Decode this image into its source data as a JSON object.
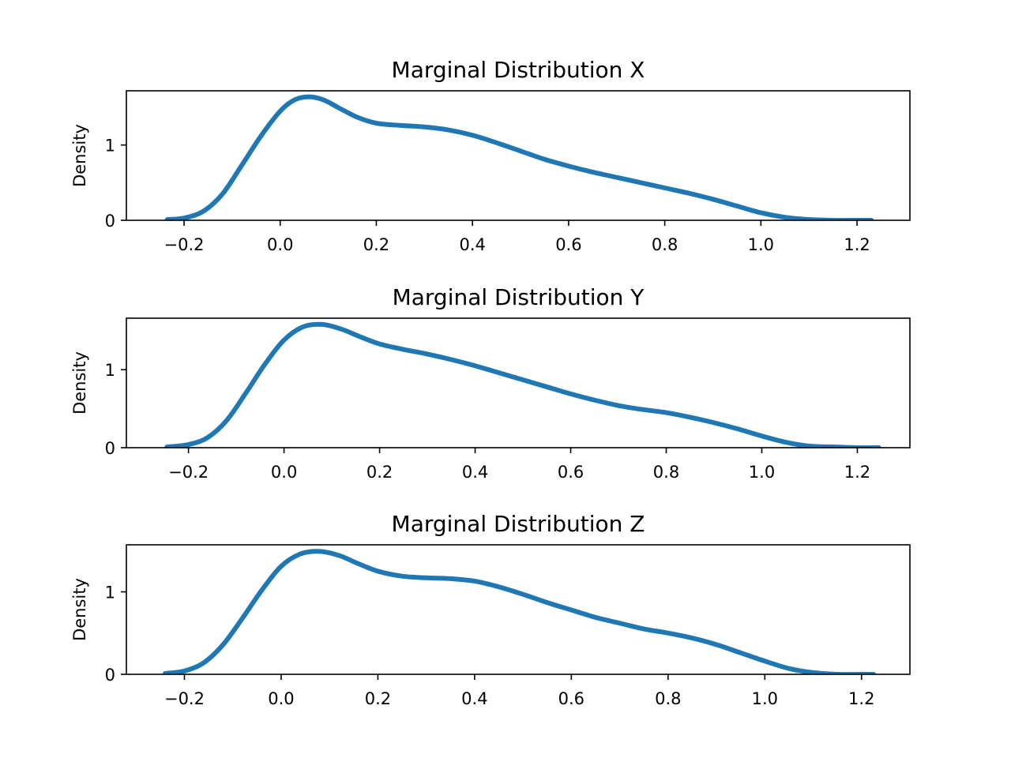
{
  "chart_data": [
    {
      "type": "line",
      "title": "Marginal Distribution X",
      "xlabel": "",
      "ylabel": "Density",
      "xlim": [
        -0.32,
        1.31
      ],
      "ylim": [
        0,
        1.72
      ],
      "xticks": [
        -0.2,
        0.0,
        0.2,
        0.4,
        0.6,
        0.8,
        1.0,
        1.2
      ],
      "xtick_labels": [
        "−0.2",
        "0.0",
        "0.2",
        "0.4",
        "0.6",
        "0.8",
        "1.0",
        "1.2"
      ],
      "yticks": [
        0,
        1
      ],
      "ytick_labels": [
        "0",
        "1"
      ],
      "grid": false,
      "color": "#1f77b4",
      "series": [
        {
          "x": [
            -0.235,
            -0.2,
            -0.16,
            -0.12,
            -0.08,
            -0.04,
            0.0,
            0.03,
            0.06,
            0.09,
            0.12,
            0.16,
            0.2,
            0.25,
            0.3,
            0.35,
            0.4,
            0.45,
            0.5,
            0.55,
            0.6,
            0.65,
            0.7,
            0.75,
            0.8,
            0.85,
            0.9,
            0.95,
            1.0,
            1.05,
            1.1,
            1.15,
            1.2,
            1.23
          ],
          "y": [
            0.01,
            0.03,
            0.12,
            0.35,
            0.73,
            1.12,
            1.45,
            1.6,
            1.64,
            1.6,
            1.5,
            1.37,
            1.29,
            1.26,
            1.24,
            1.2,
            1.13,
            1.03,
            0.92,
            0.81,
            0.72,
            0.64,
            0.57,
            0.5,
            0.43,
            0.36,
            0.28,
            0.19,
            0.1,
            0.04,
            0.01,
            0.0,
            0.0,
            0.0
          ]
        }
      ]
    },
    {
      "type": "line",
      "title": "Marginal Distribution Y",
      "xlabel": "",
      "ylabel": "Density",
      "xlim": [
        -0.33,
        1.31
      ],
      "ylim": [
        0,
        1.66
      ],
      "xticks": [
        -0.2,
        0.0,
        0.2,
        0.4,
        0.6,
        0.8,
        1.0,
        1.2
      ],
      "xtick_labels": [
        "−0.2",
        "0.0",
        "0.2",
        "0.4",
        "0.6",
        "0.8",
        "1.0",
        "1.2"
      ],
      "yticks": [
        0,
        1
      ],
      "ytick_labels": [
        "0",
        "1"
      ],
      "grid": false,
      "color": "#1f77b4",
      "series": [
        {
          "x": [
            -0.245,
            -0.2,
            -0.16,
            -0.12,
            -0.08,
            -0.04,
            0.0,
            0.04,
            0.08,
            0.12,
            0.16,
            0.2,
            0.25,
            0.3,
            0.35,
            0.4,
            0.45,
            0.5,
            0.55,
            0.6,
            0.65,
            0.7,
            0.75,
            0.8,
            0.85,
            0.9,
            0.95,
            1.0,
            1.05,
            1.1,
            1.15,
            1.2,
            1.245
          ],
          "y": [
            0.01,
            0.04,
            0.13,
            0.35,
            0.7,
            1.07,
            1.38,
            1.55,
            1.58,
            1.52,
            1.42,
            1.33,
            1.26,
            1.2,
            1.13,
            1.05,
            0.96,
            0.87,
            0.78,
            0.69,
            0.61,
            0.54,
            0.49,
            0.45,
            0.39,
            0.32,
            0.24,
            0.15,
            0.07,
            0.02,
            0.01,
            0.0,
            0.0
          ]
        }
      ]
    },
    {
      "type": "line",
      "title": "Marginal Distribution Z",
      "xlabel": "",
      "ylabel": "Density",
      "xlim": [
        -0.32,
        1.3
      ],
      "ylim": [
        0,
        1.57
      ],
      "xticks": [
        -0.2,
        0.0,
        0.2,
        0.4,
        0.6,
        0.8,
        1.0,
        1.2
      ],
      "xtick_labels": [
        "−0.2",
        "0.0",
        "0.2",
        "0.4",
        "0.6",
        "0.8",
        "1.0",
        "1.2"
      ],
      "yticks": [
        0,
        1
      ],
      "ytick_labels": [
        "0",
        "1"
      ],
      "grid": false,
      "color": "#1f77b4",
      "series": [
        {
          "x": [
            -0.24,
            -0.2,
            -0.16,
            -0.12,
            -0.08,
            -0.04,
            0.0,
            0.04,
            0.08,
            0.12,
            0.16,
            0.2,
            0.25,
            0.3,
            0.35,
            0.4,
            0.45,
            0.5,
            0.55,
            0.6,
            0.65,
            0.7,
            0.75,
            0.8,
            0.85,
            0.9,
            0.95,
            1.0,
            1.05,
            1.1,
            1.15,
            1.2,
            1.225
          ],
          "y": [
            0.01,
            0.04,
            0.14,
            0.36,
            0.68,
            1.02,
            1.31,
            1.46,
            1.49,
            1.44,
            1.34,
            1.25,
            1.19,
            1.17,
            1.16,
            1.13,
            1.06,
            0.97,
            0.87,
            0.78,
            0.69,
            0.62,
            0.55,
            0.5,
            0.44,
            0.36,
            0.26,
            0.16,
            0.07,
            0.02,
            0.0,
            0.0,
            0.0
          ]
        }
      ]
    }
  ]
}
